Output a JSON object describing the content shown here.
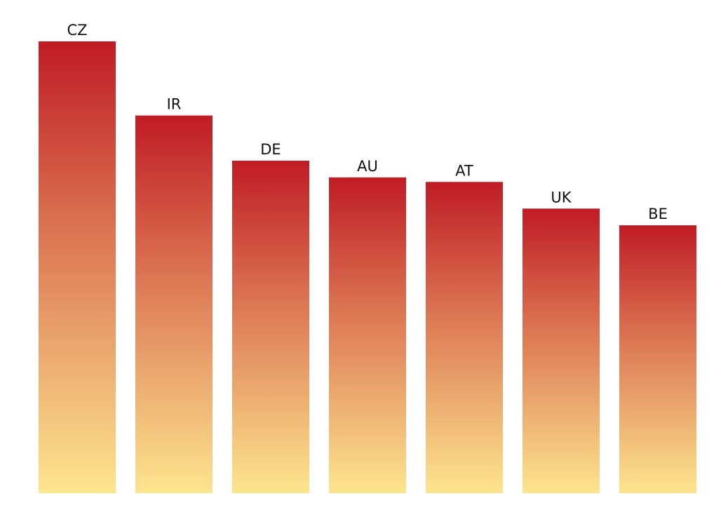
{
  "chart_data": {
    "type": "bar",
    "title": "",
    "xlabel": "",
    "ylabel": "",
    "categories": [
      "CZ",
      "IR",
      "DE",
      "AU",
      "AT",
      "UK",
      "BE"
    ],
    "values": [
      100,
      83.6,
      73.6,
      69.9,
      68.9,
      63.0,
      59.3
    ],
    "ylim": [
      0,
      100
    ],
    "grid": false,
    "legend": "none",
    "bar_labels": "category-above-bar",
    "colors": {
      "bar_top": "#c01c25",
      "bar_middle": "#dd7a55",
      "bar_bottom": "#fde58e",
      "label_text": "#111111",
      "background": "#ffffff"
    }
  }
}
